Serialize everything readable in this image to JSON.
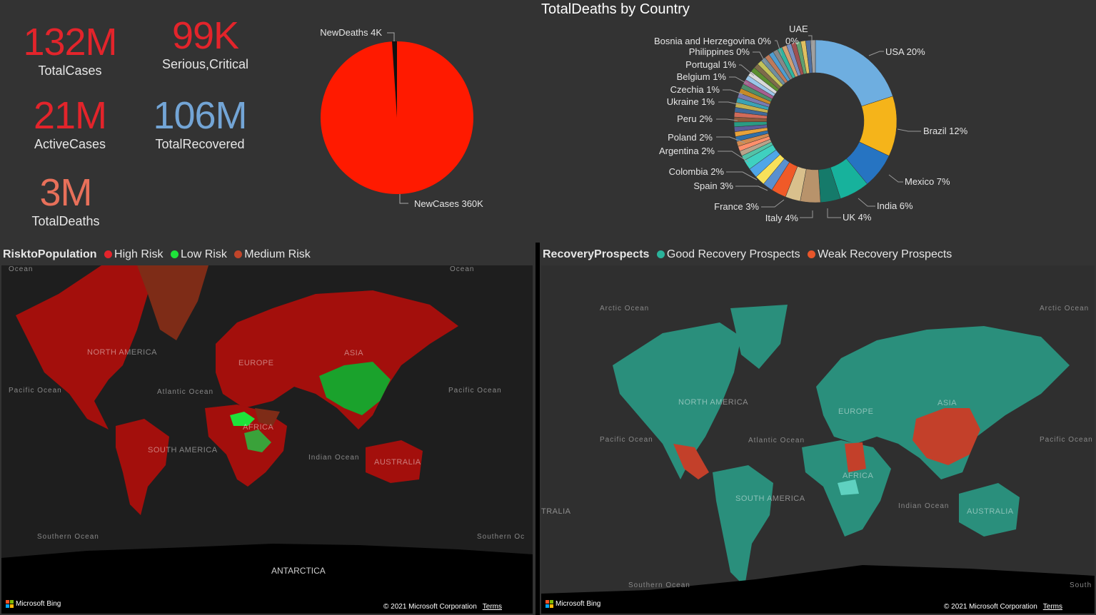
{
  "kpis": {
    "total_cases": {
      "value": "132M",
      "label": "TotalCases",
      "color": "#e3242b"
    },
    "serious_critical": {
      "value": "99K",
      "label": "Serious,Critical",
      "color": "#e3242b"
    },
    "active_cases": {
      "value": "21M",
      "label": "ActiveCases",
      "color": "#e3242b"
    },
    "total_recovered": {
      "value": "106M",
      "label": "TotalRecovered",
      "color": "#73a5d6"
    },
    "total_deaths": {
      "value": "3M",
      "label": "TotalDeaths",
      "color": "#e8705a"
    }
  },
  "pie": {
    "labels": {
      "new_deaths": "NewDeaths 4K",
      "new_cases": "NewCases 360K"
    },
    "colors": {
      "new_cases": "#ff1a00",
      "new_deaths": "#111111"
    }
  },
  "donut": {
    "title": "TotalDeaths by Country",
    "labels": {
      "usa": "USA 20%",
      "brazil": "Brazil 12%",
      "mexico": "Mexico 7%",
      "india": "India 6%",
      "uk": "UK 4%",
      "italy": "Italy 4%",
      "france": "France 3%",
      "spain": "Spain 3%",
      "colombia": "Colombia 2%",
      "argentina": "Argentina 2%",
      "poland": "Poland 2%",
      "peru": "Peru 2%",
      "ukraine": "Ukraine 1%",
      "czechia": "Czechia 1%",
      "belgium": "Belgium 1%",
      "portugal": "Portugal 1%",
      "philippines": "Philippines 0%",
      "bosnia": "Bosnia and Herzegovina 0%",
      "uae_name": "UAE",
      "uae_pct": "0%"
    }
  },
  "chart_data": {
    "type": "pie",
    "series": [
      {
        "categories": [
          "NewCases",
          "NewDeaths"
        ],
        "values": [
          360,
          4
        ]
      },
      {
        "categories": [
          "USA",
          "Brazil",
          "Mexico",
          "India",
          "UK",
          "Italy",
          "France",
          "Spain",
          "Colombia",
          "Argentina",
          "Poland",
          "Peru",
          "Ukraine",
          "Czechia",
          "Belgium",
          "Portugal",
          "Philippines",
          "Bosnia and Herzegovina",
          "UAE"
        ],
        "values": [
          20,
          12,
          7,
          6,
          4,
          4,
          3,
          3,
          2,
          2,
          2,
          2,
          1,
          1,
          1,
          1,
          0,
          0,
          0
        ]
      }
    ],
    "title": "TotalDeaths by Country"
  },
  "risk_map": {
    "legend_title": "RisktoPopulation",
    "legend": [
      {
        "label": "High Risk",
        "color": "#e3242b"
      },
      {
        "label": "Low Risk",
        "color": "#1ee33a"
      },
      {
        "label": "Medium Risk",
        "color": "#c0452a"
      }
    ],
    "regions": {
      "north_america": "NORTH AMERICA",
      "south_america": "SOUTH AMERICA",
      "europe": "EUROPE",
      "asia": "ASIA",
      "africa": "AFRICA",
      "australia": "AUSTRALIA",
      "antarctica": "ANTARCTICA"
    },
    "oceans": {
      "ocean_top_left": "Ocean",
      "ocean_top_right": "Ocean",
      "pacific_left": "Pacific Ocean",
      "atlantic": "Atlantic Ocean",
      "pacific_right": "Pacific Ocean",
      "indian": "Indian Ocean",
      "southern_left": "Southern Ocean",
      "southern_right": "Southern Oc"
    }
  },
  "recovery_map": {
    "legend_title": "RecoveryProspects",
    "legend": [
      {
        "label": "Good Recovery Prospects",
        "color": "#2ab39b"
      },
      {
        "label": "Weak Recovery Prospects",
        "color": "#e8562a"
      }
    ],
    "regions": {
      "north_america": "NORTH AMERICA",
      "south_america": "SOUTH AMERICA",
      "europe": "EUROPE",
      "asia": "ASIA",
      "africa": "AFRICA",
      "australia": "AUSTRALIA",
      "australia_left": "TRALIA"
    },
    "oceans": {
      "arctic_left": "Arctic Ocean",
      "arctic_right": "Arctic Ocean",
      "pacific_left": "Pacific Ocean",
      "atlantic": "Atlantic Ocean",
      "pacific_right": "Pacific Ocean",
      "indian": "Indian Ocean",
      "southern": "Southern Ocean",
      "south_right": "South"
    }
  },
  "footer": {
    "bing": "Microsoft Bing",
    "copyright": "© 2021 Microsoft Corporation",
    "terms": "Terms"
  }
}
